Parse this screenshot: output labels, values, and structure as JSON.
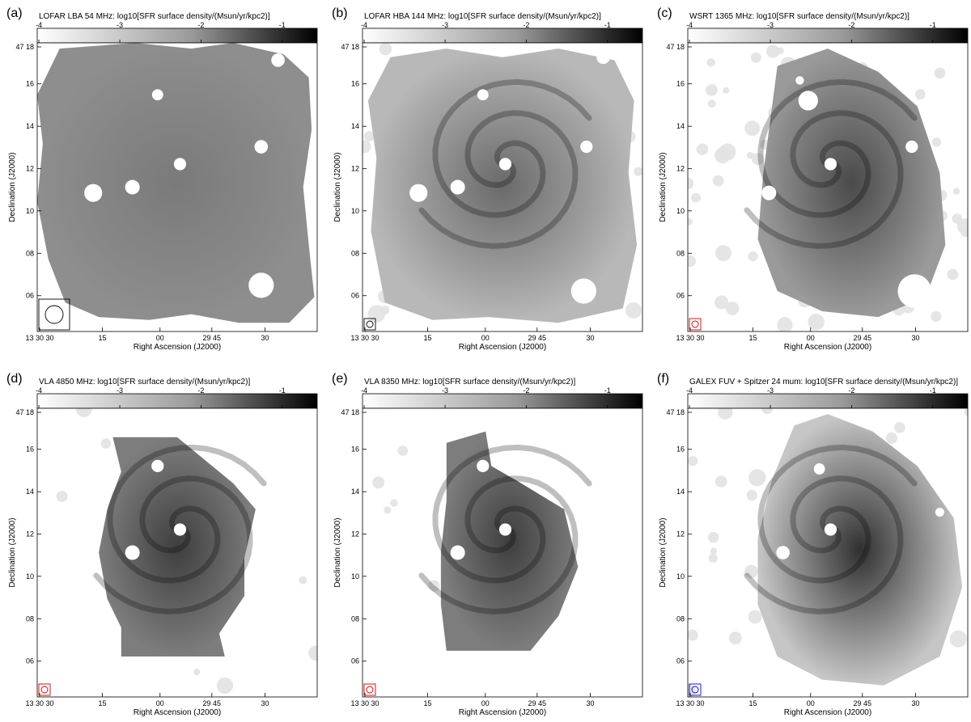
{
  "panels": [
    {
      "id": "a",
      "letter": "(a)",
      "title": "LOFAR LBA 54 MHz: log10[SFR surface density/(Msun/yr/kpc2)]",
      "mode": "lba",
      "beam": "large-black"
    },
    {
      "id": "b",
      "letter": "(b)",
      "title": "LOFAR HBA 144 MHz: log10[SFR surface density/(Msun/yr/kpc2)]",
      "mode": "hba",
      "beam": "black"
    },
    {
      "id": "c",
      "letter": "(c)",
      "title": "WSRT 1365 MHz: log10[SFR surface density/(Msun/yr/kpc2)]",
      "mode": "wsrt",
      "beam": "red"
    },
    {
      "id": "d",
      "letter": "(d)",
      "title": "VLA 4850 MHz: log10[SFR surface density/(Msun/yr/kpc2)]",
      "mode": "vla1",
      "beam": "red"
    },
    {
      "id": "e",
      "letter": "(e)",
      "title": "VLA 8350 MHz: log10[SFR surface density/(Msun/yr/kpc2)]",
      "mode": "vla2",
      "beam": "red"
    },
    {
      "id": "f",
      "letter": "(f)",
      "title": "GALEX FUV + Spitzer 24 mum: log10[SFR surface density/(Msun/yr/kpc2)]",
      "mode": "galex",
      "beam": "blue"
    }
  ],
  "colorbar_ticks": [
    "-4",
    "-3",
    "-2",
    "-1"
  ],
  "dec_ticks": [
    "47 18",
    "16",
    "14",
    "12",
    "10",
    "08",
    "06"
  ],
  "ra_ticks": [
    "13 30 30",
    "15",
    "00",
    "29 45",
    "30"
  ],
  "xlabel": "Right Ascension (J2000)",
  "ylabel": "Declination (J2000)",
  "colormap": {
    "low": "#ffffff",
    "high": "#000000"
  },
  "beam_colors": {
    "black": "#000000",
    "large-black": "#000000",
    "red": "#cc0000",
    "blue": "#0000cc"
  }
}
